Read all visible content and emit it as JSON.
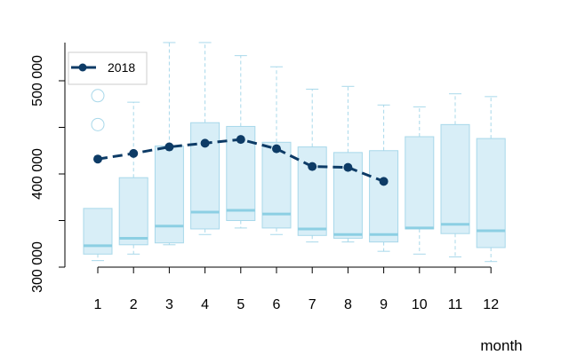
{
  "chart_data": {
    "type": "box",
    "xlabel": "month",
    "ylabel": "",
    "ylim": [
      300000,
      550000
    ],
    "yticks": [
      300000,
      400000,
      500000
    ],
    "ytick_labels": [
      "300 000",
      "400 000",
      "500 000"
    ],
    "categories": [
      "1",
      "2",
      "3",
      "4",
      "5",
      "6",
      "7",
      "8",
      "9",
      "10",
      "11",
      "12"
    ],
    "boxes": [
      {
        "month": "1",
        "whisker_low": 307000,
        "q1": 314000,
        "median": 323000,
        "q3": 363000,
        "whisker_high": 363000
      },
      {
        "month": "2",
        "whisker_low": 314000,
        "q1": 324000,
        "median": 331000,
        "q3": 396000,
        "whisker_high": 477000
      },
      {
        "month": "3",
        "whisker_low": 324000,
        "q1": 326000,
        "median": 344000,
        "q3": 430000,
        "whisker_high": 541000
      },
      {
        "month": "4",
        "whisker_low": 335000,
        "q1": 341000,
        "median": 359000,
        "q3": 455000,
        "whisker_high": 541000
      },
      {
        "month": "5",
        "whisker_low": 342000,
        "q1": 350000,
        "median": 361000,
        "q3": 451000,
        "whisker_high": 527000
      },
      {
        "month": "6",
        "whisker_low": 335000,
        "q1": 342000,
        "median": 357000,
        "q3": 434000,
        "whisker_high": 515000
      },
      {
        "month": "7",
        "whisker_low": 327000,
        "q1": 334000,
        "median": 341000,
        "q3": 429000,
        "whisker_high": 491000
      },
      {
        "month": "8",
        "whisker_low": 327000,
        "q1": 331000,
        "median": 335000,
        "q3": 423000,
        "whisker_high": 494000
      },
      {
        "month": "9",
        "whisker_low": 317000,
        "q1": 327000,
        "median": 335000,
        "q3": 425000,
        "whisker_high": 474000
      },
      {
        "month": "10",
        "whisker_low": 314000,
        "q1": 341000,
        "median": 342000,
        "q3": 440000,
        "whisker_high": 472000
      },
      {
        "month": "11",
        "whisker_low": 311000,
        "q1": 336000,
        "median": 346000,
        "q3": 453000,
        "whisker_high": 486000
      },
      {
        "month": "12",
        "whisker_low": 306000,
        "q1": 321000,
        "median": 339000,
        "q3": 438000,
        "whisker_high": 483000
      }
    ],
    "outliers": [
      {
        "month": "1",
        "value": 484000
      },
      {
        "month": "1",
        "value": 453000
      }
    ],
    "series": [
      {
        "name": "2018",
        "x": [
          "1",
          "2",
          "3",
          "4",
          "5",
          "6",
          "7",
          "8",
          "9"
        ],
        "values": [
          416000,
          422000,
          429000,
          433000,
          437000,
          427000,
          408000,
          407000,
          392000
        ]
      }
    ],
    "legend": {
      "position": "top-left"
    },
    "grid": false,
    "colors": {
      "box_fill": "#d8eef7",
      "box_border": "#a8d8ea",
      "median": "#8ccfe3",
      "whisker": "#a8d8ea",
      "series": "#0d3b66",
      "axis": "#000000"
    }
  }
}
